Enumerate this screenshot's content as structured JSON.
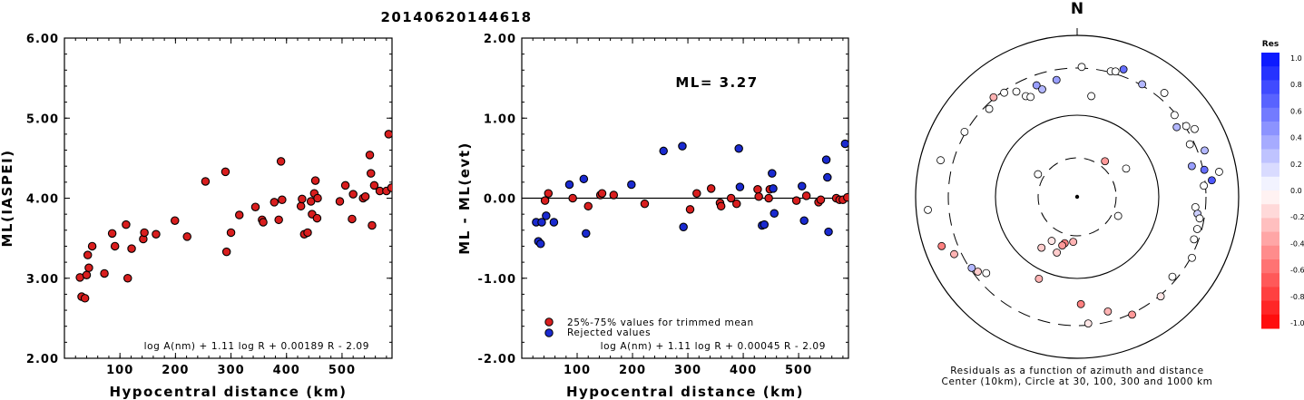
{
  "title": "20140620144618",
  "north_label": "N",
  "chart_data": [
    {
      "type": "scatter",
      "xlabel": "Hypocentral distance (km)",
      "ylabel": "ML(IASPEI)",
      "xlim": [
        0,
        590
      ],
      "ylim": [
        2.0,
        6.0
      ],
      "xticks": [
        "100",
        "200",
        "300",
        "400",
        "500"
      ],
      "yticks": [
        "2.00",
        "3.00",
        "4.00",
        "5.00",
        "6.00"
      ],
      "formula": "log A(nm) + 1.11 log R + 0.00189 R - 2.09",
      "points": [
        {
          "x": 28,
          "y": 3.01,
          "g": "t"
        },
        {
          "x": 31,
          "y": 2.77,
          "g": "t"
        },
        {
          "x": 37,
          "y": 2.75,
          "g": "t"
        },
        {
          "x": 40,
          "y": 3.04,
          "g": "t"
        },
        {
          "x": 42,
          "y": 3.29,
          "g": "t"
        },
        {
          "x": 44,
          "y": 3.13,
          "g": "t"
        },
        {
          "x": 50,
          "y": 3.4,
          "g": "t"
        },
        {
          "x": 72,
          "y": 3.06,
          "g": "t"
        },
        {
          "x": 86,
          "y": 3.56,
          "g": "t"
        },
        {
          "x": 91,
          "y": 3.4,
          "g": "t"
        },
        {
          "x": 111,
          "y": 3.67,
          "g": "t"
        },
        {
          "x": 114,
          "y": 3.0,
          "g": "t"
        },
        {
          "x": 121,
          "y": 3.37,
          "g": "t"
        },
        {
          "x": 142,
          "y": 3.49,
          "g": "t"
        },
        {
          "x": 144,
          "y": 3.57,
          "g": "t"
        },
        {
          "x": 165,
          "y": 3.55,
          "g": "t"
        },
        {
          "x": 199,
          "y": 3.72,
          "g": "t"
        },
        {
          "x": 221,
          "y": 3.52,
          "g": "t"
        },
        {
          "x": 254,
          "y": 4.21,
          "g": "t"
        },
        {
          "x": 290,
          "y": 4.33,
          "g": "t"
        },
        {
          "x": 292,
          "y": 3.33,
          "g": "t"
        },
        {
          "x": 300,
          "y": 3.57,
          "g": "t"
        },
        {
          "x": 315,
          "y": 3.79,
          "g": "t"
        },
        {
          "x": 344,
          "y": 3.89,
          "g": "t"
        },
        {
          "x": 356,
          "y": 3.73,
          "g": "t"
        },
        {
          "x": 358,
          "y": 3.7,
          "g": "t"
        },
        {
          "x": 378,
          "y": 3.95,
          "g": "t"
        },
        {
          "x": 386,
          "y": 3.73,
          "g": "t"
        },
        {
          "x": 390,
          "y": 4.46,
          "g": "t"
        },
        {
          "x": 392,
          "y": 3.98,
          "g": "t"
        },
        {
          "x": 426,
          "y": 3.9,
          "g": "t"
        },
        {
          "x": 428,
          "y": 3.99,
          "g": "t"
        },
        {
          "x": 432,
          "y": 3.55,
          "g": "t"
        },
        {
          "x": 438,
          "y": 3.57,
          "g": "t"
        },
        {
          "x": 444,
          "y": 3.96,
          "g": "t"
        },
        {
          "x": 446,
          "y": 3.8,
          "g": "t"
        },
        {
          "x": 450,
          "y": 4.06,
          "g": "t"
        },
        {
          "x": 452,
          "y": 4.22,
          "g": "t"
        },
        {
          "x": 455,
          "y": 3.75,
          "g": "t"
        },
        {
          "x": 456,
          "y": 4.0,
          "g": "t"
        },
        {
          "x": 496,
          "y": 3.96,
          "g": "t"
        },
        {
          "x": 506,
          "y": 4.16,
          "g": "t"
        },
        {
          "x": 518,
          "y": 3.74,
          "g": "t"
        },
        {
          "x": 520,
          "y": 4.05,
          "g": "t"
        },
        {
          "x": 538,
          "y": 4.0,
          "g": "t"
        },
        {
          "x": 542,
          "y": 4.02,
          "g": "t"
        },
        {
          "x": 550,
          "y": 4.54,
          "g": "t"
        },
        {
          "x": 552,
          "y": 4.31,
          "g": "t"
        },
        {
          "x": 554,
          "y": 3.66,
          "g": "t"
        },
        {
          "x": 558,
          "y": 4.16,
          "g": "t"
        },
        {
          "x": 568,
          "y": 4.09,
          "g": "t"
        },
        {
          "x": 580,
          "y": 4.09,
          "g": "t"
        },
        {
          "x": 584,
          "y": 4.8,
          "g": "t"
        },
        {
          "x": 589,
          "y": 4.13,
          "g": "t"
        }
      ]
    },
    {
      "type": "scatter",
      "xlabel": "Hypocentral distance (km)",
      "ylabel": "ML - ML(evt)",
      "xlim": [
        0,
        590
      ],
      "ylim": [
        -2.0,
        2.0
      ],
      "xticks": [
        "100",
        "200",
        "300",
        "400",
        "500"
      ],
      "yticks": [
        "-2.00",
        "-1.00",
        "0.00",
        "1.00",
        "2.00"
      ],
      "annotation": "ML= 3.27",
      "reference_line_y": 0,
      "legend": [
        "25%-75% values for trimmed mean",
        "Rejected values"
      ],
      "formula": "log A(nm) + 1.11 log R + 0.00045 R - 2.09",
      "colors": {
        "trimmed": "#d91e1e",
        "rejected": "#1a2ad0"
      },
      "points": [
        {
          "x": 26,
          "y": -0.3,
          "g": "r"
        },
        {
          "x": 30,
          "y": -0.54,
          "g": "r"
        },
        {
          "x": 34,
          "y": -0.57,
          "g": "r"
        },
        {
          "x": 36,
          "y": -0.3,
          "g": "r"
        },
        {
          "x": 42,
          "y": -0.03,
          "g": "t"
        },
        {
          "x": 44,
          "y": -0.22,
          "g": "r"
        },
        {
          "x": 48,
          "y": 0.06,
          "g": "t"
        },
        {
          "x": 58,
          "y": -0.3,
          "g": "r"
        },
        {
          "x": 86,
          "y": 0.17,
          "g": "r"
        },
        {
          "x": 92,
          "y": 0.0,
          "g": "t"
        },
        {
          "x": 112,
          "y": 0.24,
          "g": "r"
        },
        {
          "x": 116,
          "y": -0.44,
          "g": "r"
        },
        {
          "x": 120,
          "y": -0.1,
          "g": "t"
        },
        {
          "x": 142,
          "y": 0.04,
          "g": "t"
        },
        {
          "x": 145,
          "y": 0.06,
          "g": "t"
        },
        {
          "x": 166,
          "y": 0.04,
          "g": "t"
        },
        {
          "x": 198,
          "y": 0.17,
          "g": "r"
        },
        {
          "x": 222,
          "y": -0.07,
          "g": "t"
        },
        {
          "x": 256,
          "y": 0.59,
          "g": "r"
        },
        {
          "x": 290,
          "y": 0.65,
          "g": "r"
        },
        {
          "x": 292,
          "y": -0.36,
          "g": "r"
        },
        {
          "x": 304,
          "y": -0.14,
          "g": "t"
        },
        {
          "x": 316,
          "y": 0.06,
          "g": "t"
        },
        {
          "x": 342,
          "y": 0.12,
          "g": "t"
        },
        {
          "x": 358,
          "y": -0.06,
          "g": "t"
        },
        {
          "x": 360,
          "y": -0.1,
          "g": "t"
        },
        {
          "x": 378,
          "y": 0.0,
          "g": "t"
        },
        {
          "x": 388,
          "y": -0.07,
          "g": "t"
        },
        {
          "x": 392,
          "y": 0.62,
          "g": "r"
        },
        {
          "x": 394,
          "y": 0.14,
          "g": "r"
        },
        {
          "x": 426,
          "y": 0.11,
          "g": "t"
        },
        {
          "x": 428,
          "y": 0.02,
          "g": "t"
        },
        {
          "x": 434,
          "y": -0.34,
          "g": "r"
        },
        {
          "x": 438,
          "y": -0.33,
          "g": "r"
        },
        {
          "x": 446,
          "y": 0.0,
          "g": "t"
        },
        {
          "x": 448,
          "y": 0.11,
          "g": "t"
        },
        {
          "x": 452,
          "y": 0.31,
          "g": "r"
        },
        {
          "x": 454,
          "y": 0.12,
          "g": "r"
        },
        {
          "x": 456,
          "y": -0.19,
          "g": "r"
        },
        {
          "x": 496,
          "y": -0.03,
          "g": "t"
        },
        {
          "x": 506,
          "y": 0.15,
          "g": "r"
        },
        {
          "x": 510,
          "y": -0.28,
          "g": "r"
        },
        {
          "x": 514,
          "y": 0.03,
          "g": "t"
        },
        {
          "x": 536,
          "y": -0.05,
          "g": "t"
        },
        {
          "x": 540,
          "y": -0.02,
          "g": "t"
        },
        {
          "x": 550,
          "y": 0.48,
          "g": "r"
        },
        {
          "x": 552,
          "y": 0.26,
          "g": "r"
        },
        {
          "x": 554,
          "y": -0.42,
          "g": "r"
        },
        {
          "x": 568,
          "y": 0.0,
          "g": "t"
        },
        {
          "x": 574,
          "y": -0.02,
          "g": "t"
        },
        {
          "x": 580,
          "y": -0.02,
          "g": "t"
        },
        {
          "x": 584,
          "y": 0.68,
          "g": "r"
        },
        {
          "x": 588,
          "y": 0.01,
          "g": "t"
        }
      ]
    },
    {
      "type": "polar",
      "circles_km": [
        10,
        30,
        100,
        300,
        1000
      ],
      "colorbar_title": "Res",
      "colorbar_ticks": [
        "1.0",
        "0.8",
        "0.6",
        "0.4",
        "0.2",
        "0.0",
        "-0.2",
        "-0.4",
        "-0.6",
        "-0.8",
        "-1.0"
      ],
      "caption_line1": "Residuals as a function of azimuth and distance",
      "caption_line2": "Center (10km), Circle at 30, 100, 300 and 1000 km",
      "stations": [
        {
          "az": 2,
          "d": 230,
          "res": 0.0
        },
        {
          "az": 15,
          "d": 230,
          "res": 0.0
        },
        {
          "az": 17,
          "d": 232,
          "res": 0.0
        },
        {
          "az": 20,
          "d": 240,
          "res": 0.6
        },
        {
          "az": 30,
          "d": 230,
          "res": 0.3
        },
        {
          "az": 40,
          "d": 240,
          "res": 0.0
        },
        {
          "az": 50,
          "d": 225,
          "res": 0.0
        },
        {
          "az": 55,
          "d": 215,
          "res": 0.3
        },
        {
          "az": 57,
          "d": 230,
          "res": 0.0
        },
        {
          "az": 60,
          "d": 240,
          "res": 0.0
        },
        {
          "az": 65,
          "d": 220,
          "res": 0.0
        },
        {
          "az": 70,
          "d": 240,
          "res": 0.3
        },
        {
          "az": 75,
          "d": 210,
          "res": 0.4
        },
        {
          "az": 78,
          "d": 230,
          "res": 0.6
        },
        {
          "az": 80,
          "d": 255,
          "res": 0.0
        },
        {
          "az": 83,
          "d": 240,
          "res": 0.7
        },
        {
          "az": 85,
          "d": 225,
          "res": 0.0
        },
        {
          "az": 95,
          "d": 210,
          "res": 0.0
        },
        {
          "az": 98,
          "d": 215,
          "res": 0.2
        },
        {
          "az": 100,
          "d": 220,
          "res": 0.0
        },
        {
          "az": 105,
          "d": 220,
          "res": 0.0
        },
        {
          "az": 110,
          "d": 220,
          "res": 0.0
        },
        {
          "az": 118,
          "d": 230,
          "res": 0.0
        },
        {
          "az": 130,
          "d": 220,
          "res": 0.0
        },
        {
          "az": 140,
          "d": 230,
          "res": -0.1
        },
        {
          "az": 155,
          "d": 230,
          "res": -0.4
        },
        {
          "az": 165,
          "d": 210,
          "res": -0.3
        },
        {
          "az": 175,
          "d": 225,
          "res": -0.1
        },
        {
          "az": 178,
          "d": 190,
          "res": -0.5
        },
        {
          "az": 185,
          "d": 80,
          "res": -0.3
        },
        {
          "az": 195,
          "d": 85,
          "res": -0.5
        },
        {
          "az": 197,
          "d": 90,
          "res": -0.4
        },
        {
          "az": 200,
          "d": 105,
          "res": -0.2
        },
        {
          "az": 205,
          "d": 160,
          "res": -0.3
        },
        {
          "az": 210,
          "d": 90,
          "res": -0.1
        },
        {
          "az": 215,
          "d": 110,
          "res": -0.2
        },
        {
          "az": 230,
          "d": 210,
          "res": 0.0
        },
        {
          "az": 233,
          "d": 220,
          "res": -0.2
        },
        {
          "az": 236,
          "d": 225,
          "res": 0.3
        },
        {
          "az": 245,
          "d": 240,
          "res": -0.3
        },
        {
          "az": 250,
          "d": 255,
          "res": -0.5
        },
        {
          "az": 265,
          "d": 265,
          "res": 0.0
        },
        {
          "az": 285,
          "d": 250,
          "res": 0.0
        },
        {
          "az": 300,
          "d": 230,
          "res": 0.0
        },
        {
          "az": 315,
          "d": 220,
          "res": 0.0
        },
        {
          "az": 320,
          "d": 230,
          "res": -0.3
        },
        {
          "az": 325,
          "d": 225,
          "res": 0.0
        },
        {
          "az": 330,
          "d": 215,
          "res": 0.0
        },
        {
          "az": 333,
          "d": 200,
          "res": 0.0
        },
        {
          "az": 335,
          "d": 195,
          "res": 0.0
        },
        {
          "az": 340,
          "d": 210,
          "res": 0.4
        },
        {
          "az": 342,
          "d": 200,
          "res": 0.3
        },
        {
          "az": 350,
          "d": 210,
          "res": 0.4
        },
        {
          "az": 38,
          "d": 80,
          "res": -0.4
        },
        {
          "az": 60,
          "d": 100,
          "res": 0.0
        },
        {
          "az": 300,
          "d": 80,
          "res": 0.0
        },
        {
          "az": 115,
          "d": 80,
          "res": 0.0
        },
        {
          "az": 8,
          "d": 180,
          "res": 0.0
        }
      ]
    }
  ]
}
